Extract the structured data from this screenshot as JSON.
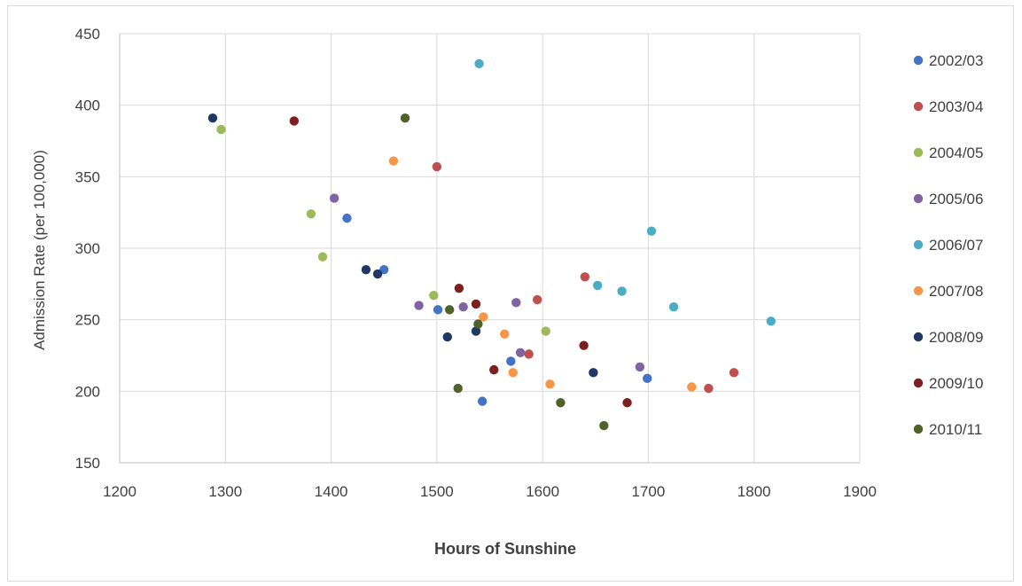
{
  "chart_data": {
    "type": "scatter",
    "title": "",
    "xlabel": "Hours of Sunshine",
    "ylabel": "Admission Rate (per 100,000)",
    "xlim": [
      1200,
      1900
    ],
    "ylim": [
      150,
      450
    ],
    "x_ticks": [
      "1200",
      "1300",
      "1400",
      "1500",
      "1600",
      "1700",
      "1800",
      "1900"
    ],
    "y_ticks": [
      "150",
      "200",
      "250",
      "300",
      "350",
      "400",
      "450"
    ],
    "grid": true,
    "legend_position": "right",
    "series": [
      {
        "name": "2002/03",
        "color": "#4472c4",
        "points": [
          [
            1415,
            321
          ],
          [
            1450,
            285
          ],
          [
            1501,
            257
          ],
          [
            1543,
            193
          ],
          [
            1570,
            221
          ],
          [
            1699,
            209
          ]
        ]
      },
      {
        "name": "2003/04",
        "color": "#c0504d",
        "points": [
          [
            1500,
            357
          ],
          [
            1587,
            226
          ],
          [
            1595,
            264
          ],
          [
            1640,
            280
          ],
          [
            1757,
            202
          ],
          [
            1781,
            213
          ]
        ]
      },
      {
        "name": "2004/05",
        "color": "#9bbb59",
        "points": [
          [
            1296,
            383
          ],
          [
            1381,
            324
          ],
          [
            1392,
            294
          ],
          [
            1497,
            267
          ],
          [
            1603,
            242
          ]
        ]
      },
      {
        "name": "2005/06",
        "color": "#8064a2",
        "points": [
          [
            1403,
            335
          ],
          [
            1483,
            260
          ],
          [
            1525,
            259
          ],
          [
            1575,
            262
          ],
          [
            1579,
            227
          ],
          [
            1692,
            217
          ]
        ]
      },
      {
        "name": "2006/07",
        "color": "#4bacc6",
        "points": [
          [
            1540,
            429
          ],
          [
            1652,
            274
          ],
          [
            1675,
            270
          ],
          [
            1703,
            312
          ],
          [
            1724,
            259
          ],
          [
            1816,
            249
          ]
        ]
      },
      {
        "name": "2007/08",
        "color": "#f79646",
        "points": [
          [
            1459,
            361
          ],
          [
            1544,
            252
          ],
          [
            1564,
            240
          ],
          [
            1572,
            213
          ],
          [
            1607,
            205
          ],
          [
            1741,
            203
          ]
        ]
      },
      {
        "name": "2008/09",
        "color": "#1f3864",
        "points": [
          [
            1288,
            391
          ],
          [
            1433,
            285
          ],
          [
            1444,
            282
          ],
          [
            1510,
            238
          ],
          [
            1537,
            242
          ],
          [
            1648,
            213
          ]
        ]
      },
      {
        "name": "2009/10",
        "color": "#7b1f1f",
        "points": [
          [
            1365,
            389
          ],
          [
            1521,
            272
          ],
          [
            1537,
            261
          ],
          [
            1554,
            215
          ],
          [
            1639,
            232
          ],
          [
            1680,
            192
          ]
        ]
      },
      {
        "name": "2010/11",
        "color": "#4f6228",
        "points": [
          [
            1470,
            391
          ],
          [
            1512,
            257
          ],
          [
            1520,
            202
          ],
          [
            1539,
            247
          ],
          [
            1617,
            192
          ],
          [
            1658,
            176
          ]
        ]
      }
    ]
  }
}
